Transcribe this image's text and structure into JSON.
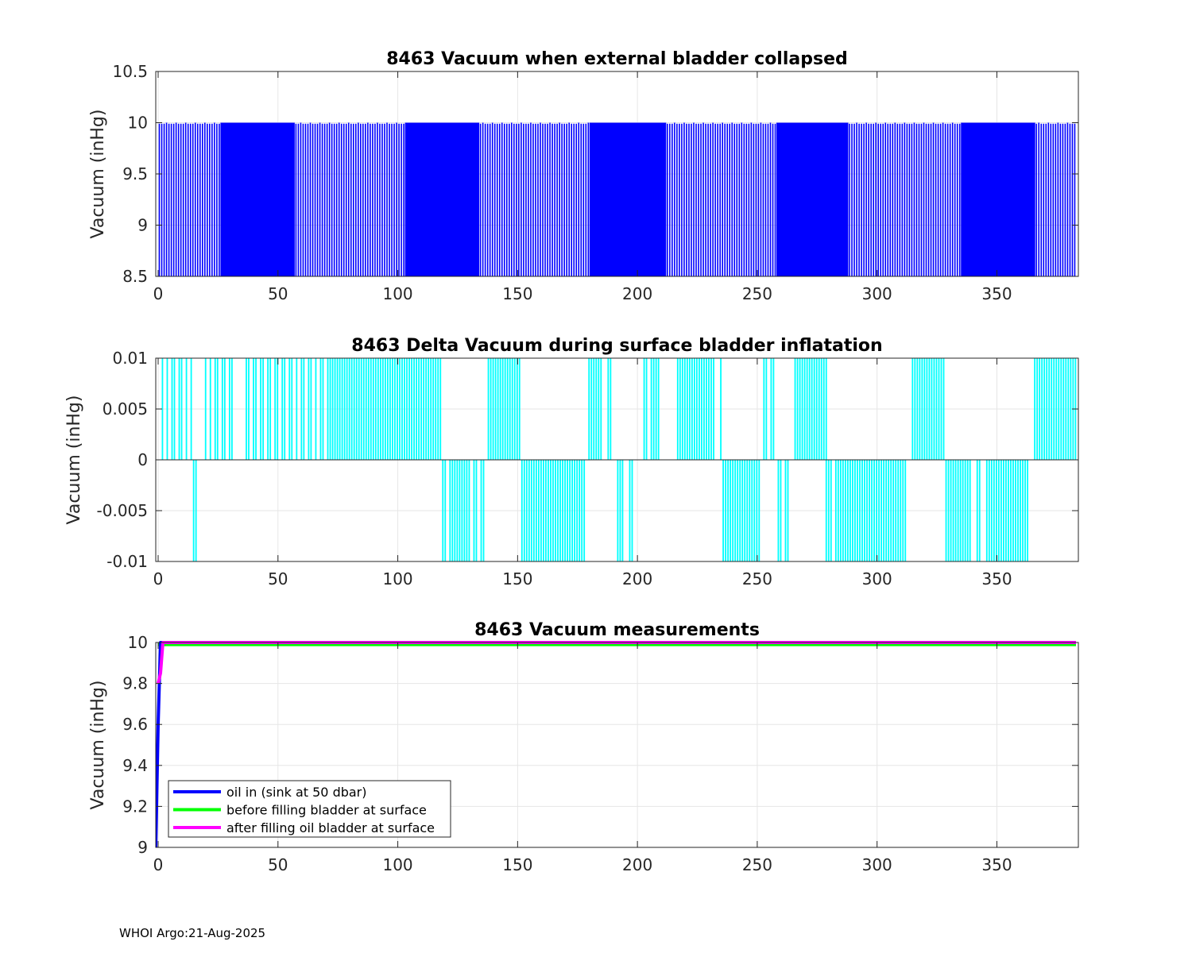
{
  "footer": "WHOI Argo:21-Aug-2025",
  "chart_data": [
    {
      "type": "bar",
      "title": "8463 Vacuum when external bladder collapsed",
      "xlabel": "",
      "ylabel": "Vacuum (inHg)",
      "xlim": [
        -1,
        384
      ],
      "ylim": [
        8.5,
        10.5
      ],
      "xticks": [
        0,
        50,
        100,
        150,
        200,
        250,
        300,
        350
      ],
      "yticks": [
        8.5,
        9,
        9.5,
        10,
        10.5
      ],
      "ytick_labels": [
        "8.5",
        "9",
        "9.5",
        "10",
        "10.5"
      ],
      "grid": true,
      "bar_color": "#0000ff",
      "n_points": 383,
      "description_values": "all bars approx 9.99-10.0",
      "values": [
        9.99,
        9.99,
        9.99,
        10.0,
        9.99,
        9.99,
        9.99,
        10.0
      ]
    },
    {
      "type": "bar",
      "title": "8463 Delta Vacuum during surface bladder inflatation",
      "xlabel": "",
      "ylabel": "Vacuum (inHg)",
      "xlim": [
        -1,
        384
      ],
      "ylim": [
        -0.01,
        0.01
      ],
      "xticks": [
        0,
        50,
        100,
        150,
        200,
        250,
        300,
        350
      ],
      "yticks": [
        -0.01,
        -0.005,
        0,
        0.005,
        0.01
      ],
      "ytick_labels": [
        "-0.01",
        "-0.005",
        "0",
        "0.005",
        "0.01"
      ],
      "grid": true,
      "bar_color": "#00ffff",
      "positive_ranges": [
        [
          1,
          2
        ],
        [
          3,
          4
        ],
        [
          5,
          7
        ],
        [
          8,
          10
        ],
        [
          11,
          12
        ],
        [
          13,
          14
        ],
        [
          19,
          20
        ],
        [
          21,
          22
        ],
        [
          23,
          25
        ],
        [
          26,
          28
        ],
        [
          29,
          31
        ],
        [
          36,
          38
        ],
        [
          39,
          41
        ],
        [
          42,
          44
        ],
        [
          45,
          47
        ],
        [
          48,
          50
        ],
        [
          51,
          53
        ],
        [
          54,
          56
        ],
        [
          57,
          58
        ],
        [
          59,
          61
        ],
        [
          62,
          64
        ],
        [
          65,
          66
        ],
        [
          67,
          69
        ],
        [
          70,
          103
        ],
        [
          103,
          118
        ],
        [
          137,
          151
        ],
        [
          179,
          185
        ],
        [
          187,
          189
        ],
        [
          202,
          204
        ],
        [
          205,
          209
        ],
        [
          216,
          232
        ],
        [
          234,
          235
        ],
        [
          252,
          254
        ],
        [
          255,
          257
        ],
        [
          265,
          279
        ],
        [
          314,
          328
        ],
        [
          365,
          383
        ]
      ],
      "negative_ranges": [
        [
          14,
          16
        ],
        [
          118,
          119
        ],
        [
          119,
          120
        ],
        [
          121,
          125
        ],
        [
          125,
          127
        ],
        [
          127,
          130
        ],
        [
          131,
          133
        ],
        [
          134,
          136
        ],
        [
          151,
          178
        ],
        [
          191,
          194
        ],
        [
          196,
          198
        ],
        [
          235,
          251
        ],
        [
          258,
          260
        ],
        [
          261,
          263
        ],
        [
          278,
          281
        ],
        [
          282,
          312
        ],
        [
          328,
          339
        ],
        [
          341,
          343
        ],
        [
          345,
          363
        ]
      ]
    },
    {
      "type": "line",
      "title": "8463 Vacuum measurements",
      "xlabel": "",
      "ylabel": "Vacuum (inHg)",
      "xlim": [
        -1,
        384
      ],
      "ylim": [
        9,
        10
      ],
      "xticks": [
        0,
        50,
        100,
        150,
        200,
        250,
        300,
        350
      ],
      "yticks": [
        9,
        9.2,
        9.4,
        9.6,
        9.8,
        10
      ],
      "ytick_labels": [
        "9",
        "9.2",
        "9.4",
        "9.6",
        "9.8",
        "10"
      ],
      "grid": true,
      "legend_position": "bottom-left",
      "series": [
        {
          "name": "oil in (sink at 50 dbar)",
          "color": "#0000ff",
          "x": [
            -1,
            0,
            1,
            2,
            383
          ],
          "values": [
            9.0,
            9.6,
            10.0,
            10.0,
            10.0
          ]
        },
        {
          "name": "before filling bladder at surface",
          "color": "#00ff00",
          "x": [
            0,
            1,
            383
          ],
          "values": [
            9.99,
            9.99,
            9.99
          ]
        },
        {
          "name": "after filling oil bladder at surface",
          "color": "#ff00ff",
          "x": [
            0,
            1,
            2,
            383
          ],
          "values": [
            9.8,
            9.85,
            10.0,
            10.0
          ]
        }
      ]
    }
  ]
}
